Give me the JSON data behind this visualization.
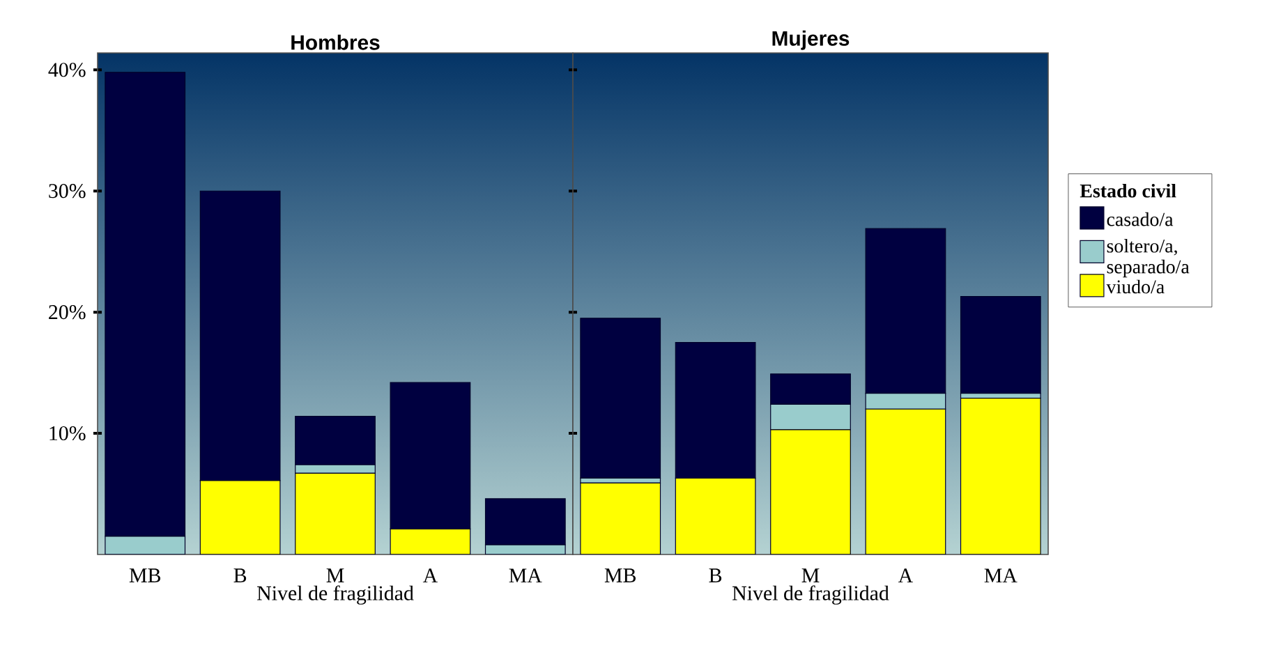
{
  "chart_data": [
    {
      "type": "bar",
      "title": "Hombres",
      "xlabel": "Nivel de fragilidad",
      "categories": [
        "MB",
        "B",
        "M",
        "A",
        "MA"
      ],
      "stacked": true,
      "ylim": [
        0,
        41.4
      ],
      "yticks": [
        {
          "value": 10,
          "label": "10%"
        },
        {
          "value": 20,
          "label": "20%"
        },
        {
          "value": 30,
          "label": "30%"
        },
        {
          "value": 40,
          "label": "40%"
        }
      ],
      "series": [
        {
          "color": "#ffff00",
          "values": [
            0,
            6.1,
            6.7,
            2.1,
            0
          ]
        },
        {
          "color": "#99cccc",
          "values": [
            1.5,
            0,
            0.7,
            0,
            0.8
          ]
        },
        {
          "color": "#000040",
          "values": [
            38.3,
            23.9,
            4.0,
            12.1,
            3.8
          ]
        }
      ]
    },
    {
      "type": "bar",
      "title": "Mujeres",
      "xlabel": "Nivel de fragilidad",
      "categories": [
        "MB",
        "B",
        "M",
        "A",
        "MA"
      ],
      "stacked": true,
      "ylim": [
        0,
        41.4
      ],
      "yticks": [
        {
          "value": 10,
          "label": null
        },
        {
          "value": 20,
          "label": null
        },
        {
          "value": 30,
          "label": null
        },
        {
          "value": 40,
          "label": null
        }
      ],
      "tick_labels": "x",
      "legend": "right",
      "legend_title": "Estado civil",
      "series": [
        {
          "name": "viudo/a",
          "color": "#ffff00",
          "values": [
            5.9,
            6.3,
            10.3,
            12.0,
            12.9
          ]
        },
        {
          "name": "soltero/a, separado/a",
          "color": "#99cccc",
          "values": [
            0.4,
            0,
            2.1,
            1.3,
            0.4
          ]
        },
        {
          "name": "casado/a",
          "color": "#000040",
          "values": [
            13.2,
            11.2,
            2.5,
            13.6,
            8.0
          ]
        }
      ]
    }
  ]
}
